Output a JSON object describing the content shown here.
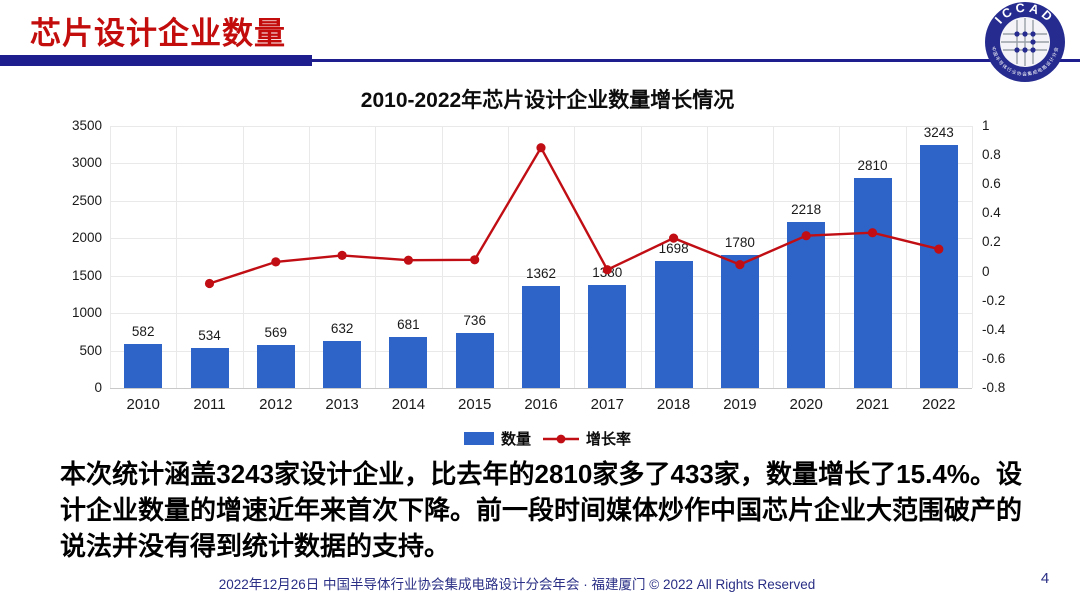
{
  "header": {
    "title": "芯片设计企业数量",
    "logo": {
      "text": "ICCAD",
      "ring_text": "中国半导体行业协会集成电路设计分会"
    }
  },
  "chart_data": {
    "type": "bar+line combo",
    "title": "2010-2022年芯片设计企业数量增长情况",
    "categories": [
      "2010",
      "2011",
      "2012",
      "2013",
      "2014",
      "2015",
      "2016",
      "2017",
      "2018",
      "2019",
      "2020",
      "2021",
      "2022"
    ],
    "series": [
      {
        "name": "数量",
        "type": "bar",
        "axis": "left",
        "color": "#2E64C8",
        "values": [
          582,
          534,
          569,
          632,
          681,
          736,
          1362,
          1380,
          1698,
          1780,
          2218,
          2810,
          3243
        ]
      },
      {
        "name": "增长率",
        "type": "line",
        "axis": "right",
        "color": "#C00E14",
        "values": [
          null,
          -0.082,
          0.066,
          0.111,
          0.078,
          0.081,
          0.851,
          0.013,
          0.23,
          0.048,
          0.246,
          0.267,
          0.154
        ]
      }
    ],
    "left_axis": {
      "min": 0,
      "max": 3500,
      "step": 500,
      "ticks": [
        "0",
        "500",
        "1000",
        "1500",
        "2000",
        "2500",
        "3000",
        "3500"
      ]
    },
    "right_axis": {
      "min": -0.8,
      "max": 1,
      "step": 0.2,
      "ticks": [
        "1",
        "0.8",
        "0.6",
        "0.4",
        "0.2",
        "0",
        "-0.2",
        "-0.4",
        "-0.6",
        "-0.8"
      ]
    },
    "grid": true,
    "legend_position": "bottom",
    "data_labels_visible": true
  },
  "body": {
    "paragraph": "本次统计涵盖3243家设计企业，比去年的2810家多了433家，数量增长了15.4%。设计企业数量的增速近年来首次下降。前一段时间媒体炒作中国芯片企业大范围破产的说法并没有得到统计数据的支持。"
  },
  "footer": {
    "text": "2022年12月26日 中国半导体行业协会集成电路设计分会年会 · 福建厦门 © 2022 All Rights Reserved",
    "page": "4"
  },
  "colors": {
    "header_red": "#C30D0D",
    "navy_rule": "#1E1E8F",
    "bar_blue": "#2E64C8",
    "line_red": "#C00E14",
    "grid_gray": "#E9E9E9",
    "footer_navy": "#2A2F85"
  }
}
